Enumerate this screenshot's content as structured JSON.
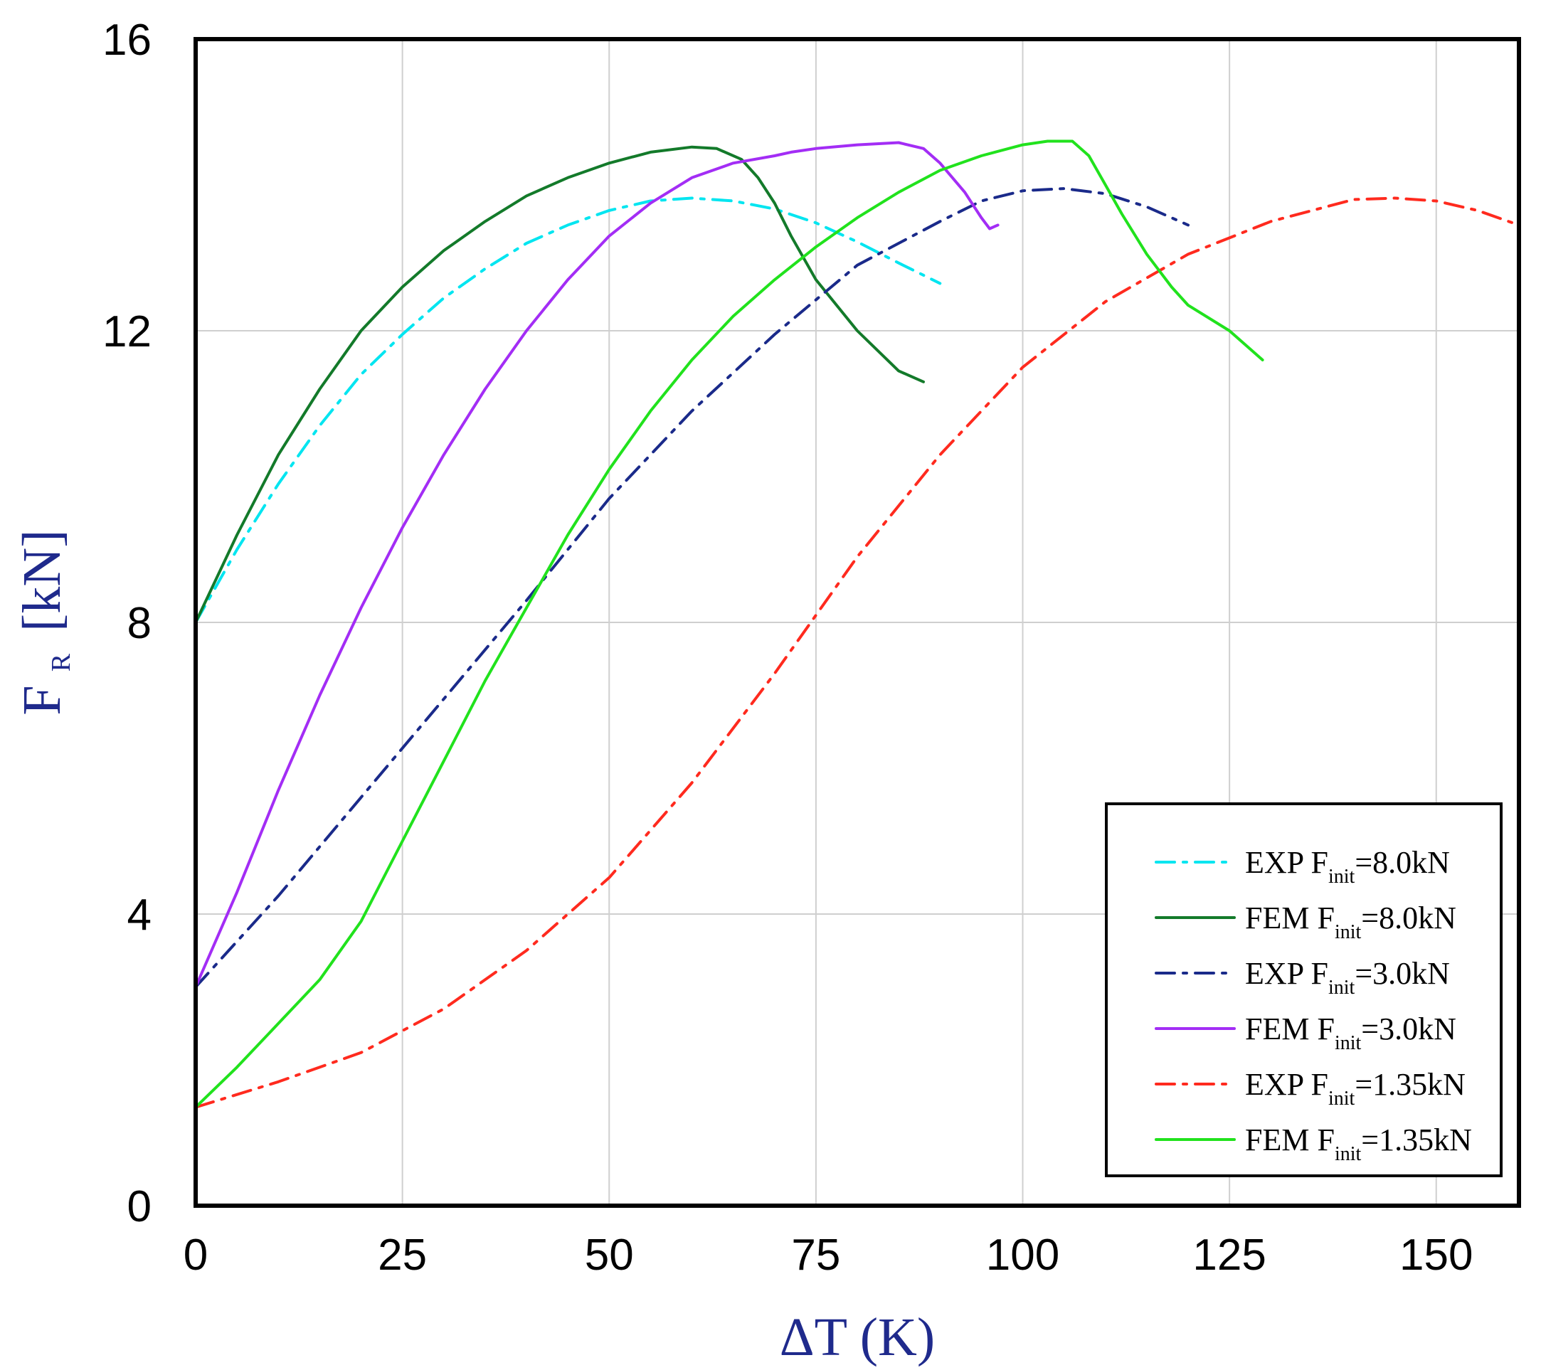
{
  "chart_data": {
    "type": "line",
    "title": "",
    "xlabel": "ΔT (K)",
    "ylabel": {
      "main": "F",
      "subscript": "R",
      "unit": "[kN]"
    },
    "xlim": [
      0,
      160
    ],
    "ylim": [
      0,
      16
    ],
    "xticks": [
      0,
      25,
      50,
      75,
      100,
      125,
      150
    ],
    "yticks": [
      0,
      4,
      8,
      12,
      16
    ],
    "grid": true,
    "legend_position": "bottom-right",
    "series": [
      {
        "name": "EXP F_init=8.0kN",
        "legend": {
          "prefix": "EXP F",
          "sub": "init",
          "suffix": "=8.0kN"
        },
        "color": "#00e5f0",
        "style": "dashdot",
        "x": [
          0,
          5,
          10,
          15,
          20,
          25,
          30,
          35,
          40,
          45,
          50,
          55,
          60,
          65,
          70,
          75,
          80,
          85,
          90
        ],
        "y": [
          8.0,
          9.0,
          9.9,
          10.7,
          11.4,
          11.95,
          12.45,
          12.85,
          13.2,
          13.45,
          13.65,
          13.78,
          13.82,
          13.78,
          13.67,
          13.48,
          13.22,
          12.93,
          12.65
        ]
      },
      {
        "name": "FEM F_init=8.0kN",
        "legend": {
          "prefix": "FEM F",
          "sub": "init",
          "suffix": "=8.0kN"
        },
        "color": "#137a2a",
        "style": "solid",
        "x": [
          0,
          5,
          10,
          15,
          20,
          25,
          30,
          35,
          40,
          45,
          50,
          55,
          60,
          63,
          66,
          68,
          70,
          72,
          75,
          80,
          85,
          88
        ],
        "y": [
          8.0,
          9.2,
          10.3,
          11.2,
          12.0,
          12.6,
          13.1,
          13.5,
          13.85,
          14.1,
          14.3,
          14.45,
          14.52,
          14.5,
          14.35,
          14.1,
          13.75,
          13.3,
          12.7,
          12.0,
          11.45,
          11.3
        ]
      },
      {
        "name": "EXP F_init=3.0kN",
        "legend": {
          "prefix": "EXP F",
          "sub": "init",
          "suffix": "=3.0kN"
        },
        "color": "#1a2a8a",
        "style": "dashdot",
        "x": [
          0,
          10,
          20,
          30,
          40,
          50,
          60,
          70,
          80,
          90,
          95,
          100,
          105,
          110,
          115,
          120
        ],
        "y": [
          3.0,
          4.25,
          5.6,
          6.95,
          8.3,
          9.7,
          10.9,
          11.95,
          12.9,
          13.5,
          13.78,
          13.92,
          13.95,
          13.88,
          13.7,
          13.45
        ]
      },
      {
        "name": "FEM F_init=3.0kN",
        "legend": {
          "prefix": "FEM F",
          "sub": "init",
          "suffix": "=3.0kN"
        },
        "color": "#a32df5",
        "style": "solid",
        "x": [
          0,
          5,
          10,
          15,
          20,
          25,
          30,
          35,
          40,
          45,
          50,
          55,
          60,
          65,
          70,
          72,
          75,
          80,
          85,
          88,
          90,
          93,
          95,
          96,
          97
        ],
        "y": [
          3.0,
          4.3,
          5.7,
          7.0,
          8.2,
          9.3,
          10.3,
          11.2,
          12.0,
          12.7,
          13.3,
          13.75,
          14.1,
          14.3,
          14.4,
          14.45,
          14.5,
          14.55,
          14.58,
          14.5,
          14.3,
          13.9,
          13.55,
          13.4,
          13.45
        ]
      },
      {
        "name": "EXP F_init=1.35kN",
        "legend": {
          "prefix": "EXP F",
          "sub": "init",
          "suffix": "=1.35kN"
        },
        "color": "#ff2a1e",
        "style": "dashdot",
        "x": [
          0,
          10,
          20,
          30,
          40,
          50,
          60,
          70,
          80,
          90,
          100,
          110,
          120,
          130,
          140,
          145,
          150,
          155,
          160
        ],
        "y": [
          1.35,
          1.7,
          2.1,
          2.7,
          3.5,
          4.5,
          5.8,
          7.3,
          8.9,
          10.3,
          11.5,
          12.4,
          13.05,
          13.5,
          13.8,
          13.82,
          13.78,
          13.65,
          13.45
        ]
      },
      {
        "name": "FEM F_init=1.35kN",
        "legend": {
          "prefix": "FEM F",
          "sub": "init",
          "suffix": "=1.35kN"
        },
        "color": "#21e21d",
        "style": "solid",
        "x": [
          0,
          5,
          10,
          15,
          20,
          25,
          30,
          35,
          40,
          45,
          50,
          55,
          60,
          65,
          70,
          75,
          80,
          85,
          90,
          95,
          100,
          103,
          106,
          108,
          110,
          112,
          115,
          118,
          120,
          125,
          129
        ],
        "y": [
          1.35,
          1.9,
          2.5,
          3.1,
          3.9,
          5.0,
          6.1,
          7.2,
          8.2,
          9.2,
          10.1,
          10.9,
          11.6,
          12.2,
          12.7,
          13.15,
          13.55,
          13.9,
          14.2,
          14.4,
          14.55,
          14.6,
          14.6,
          14.4,
          14.0,
          13.6,
          13.05,
          12.6,
          12.35,
          12.0,
          11.6
        ]
      }
    ]
  }
}
